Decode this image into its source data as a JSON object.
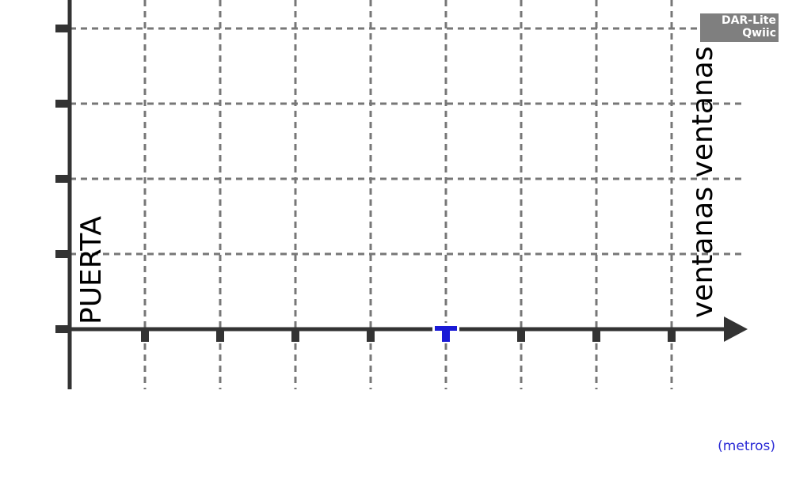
{
  "labels": {
    "door": "PUERTA",
    "windows": "ventanas ventanas",
    "units": "(metros)"
  },
  "badge": {
    "line1": "DAR-Lite",
    "line2": "Qwiic"
  },
  "colors": {
    "axis": "#333333",
    "grid": "#777777",
    "marker": "#1a1ad6",
    "units_text": "#2b2bd6",
    "badge_bg": "#7f7f7f"
  }
}
